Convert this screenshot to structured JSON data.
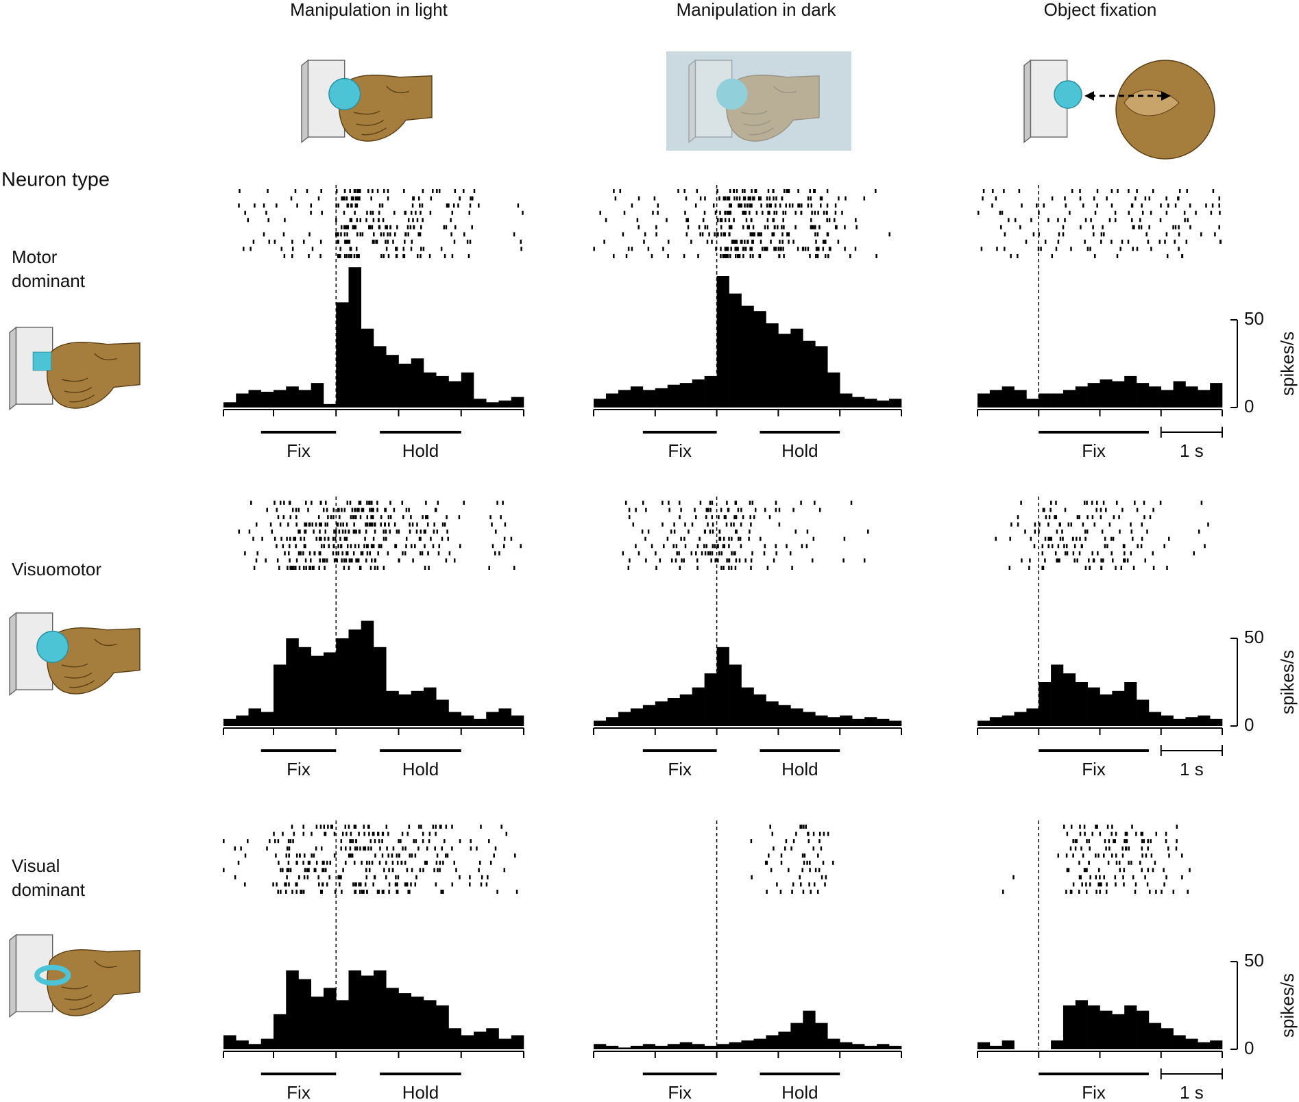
{
  "column_titles": [
    "Manipulation in light",
    "Manipulation in dark",
    "Object fixation"
  ],
  "row_header": "Neuron type",
  "row_labels": [
    [
      "Motor",
      "dominant"
    ],
    [
      "Visuomotor"
    ],
    [
      "Visual",
      "dominant"
    ]
  ],
  "chart_data": [
    {
      "type": "histogram",
      "color": "#000000",
      "xlim": [
        -1.8,
        3
      ],
      "ylim": [
        0,
        100
      ],
      "xticks": [
        -1.8,
        -1,
        0,
        1,
        2,
        3
      ],
      "bins": [
        -1.8,
        -1.6,
        -1.4,
        -1.2,
        -1,
        -0.8,
        -0.6,
        -0.4,
        -0.2,
        0,
        0.2,
        0.4,
        0.6,
        0.8,
        1,
        1.2,
        1.4,
        1.6,
        1.8,
        2,
        2.2,
        2.4,
        2.6,
        2.8,
        3
      ],
      "values": [
        3,
        8,
        10,
        9,
        10,
        12,
        10,
        14,
        2,
        60,
        80,
        45,
        35,
        30,
        25,
        28,
        20,
        18,
        15,
        20,
        5,
        3,
        4,
        6
      ],
      "events": [
        {
          "label": "Fix",
          "start": -1.2,
          "end": 0
        },
        {
          "label": "Hold",
          "start": 0.7,
          "end": 2
        }
      ]
    },
    {
      "type": "histogram",
      "color": "#000000",
      "xlim": [
        -2,
        3
      ],
      "ylim": [
        0,
        100
      ],
      "xticks": [
        -2,
        -1,
        0,
        1,
        2,
        3
      ],
      "bins": [
        -2,
        -1.8,
        -1.6,
        -1.4,
        -1.2,
        -1,
        -0.8,
        -0.6,
        -0.4,
        -0.2,
        0,
        0.2,
        0.4,
        0.6,
        0.8,
        1,
        1.2,
        1.4,
        1.6,
        1.8,
        2,
        2.2,
        2.4,
        2.6,
        2.8,
        3
      ],
      "values": [
        5,
        8,
        10,
        12,
        10,
        11,
        13,
        14,
        16,
        18,
        75,
        65,
        58,
        55,
        48,
        42,
        45,
        38,
        35,
        20,
        8,
        6,
        5,
        4,
        5
      ],
      "events": [
        {
          "label": "Fix",
          "start": -1.2,
          "end": 0
        },
        {
          "label": "Hold",
          "start": 0.7,
          "end": 2
        }
      ]
    },
    {
      "type": "histogram",
      "color": "#000000",
      "xlim": [
        -1,
        3
      ],
      "ylim": [
        0,
        100
      ],
      "xticks": [
        -1,
        0,
        1,
        2,
        3
      ],
      "yticks": [
        0,
        50
      ],
      "y_label": "spikes/s",
      "bins": [
        -1,
        -0.8,
        -0.6,
        -0.4,
        -0.2,
        0,
        0.2,
        0.4,
        0.6,
        0.8,
        1,
        1.2,
        1.4,
        1.6,
        1.8,
        2,
        2.2,
        2.4,
        2.6,
        2.8,
        3
      ],
      "values": [
        8,
        10,
        12,
        10,
        5,
        8,
        8,
        10,
        12,
        14,
        16,
        15,
        18,
        14,
        12,
        10,
        15,
        12,
        10,
        14
      ],
      "events": [
        {
          "label": "Fix",
          "start": 0,
          "end": 1.8
        }
      ],
      "scale_bar": {
        "label": "1 s",
        "start": 2,
        "end": 3
      }
    },
    {
      "type": "histogram",
      "color": "#000000",
      "xlim": [
        -1.8,
        3
      ],
      "ylim": [
        0,
        100
      ],
      "xticks": [
        -1.8,
        -1,
        0,
        1,
        2,
        3
      ],
      "bins": [
        -1.8,
        -1.6,
        -1.4,
        -1.2,
        -1,
        -0.8,
        -0.6,
        -0.4,
        -0.2,
        0,
        0.2,
        0.4,
        0.6,
        0.8,
        1,
        1.2,
        1.4,
        1.6,
        1.8,
        2,
        2.2,
        2.4,
        2.6,
        2.8,
        3
      ],
      "values": [
        4,
        6,
        10,
        8,
        35,
        50,
        45,
        40,
        42,
        50,
        55,
        60,
        45,
        20,
        18,
        20,
        22,
        15,
        8,
        6,
        4,
        8,
        10,
        6
      ],
      "events": [
        {
          "label": "Fix",
          "start": -1.2,
          "end": 0
        },
        {
          "label": "Hold",
          "start": 0.7,
          "end": 2
        }
      ]
    },
    {
      "type": "histogram",
      "color": "#000000",
      "xlim": [
        -2,
        3
      ],
      "ylim": [
        0,
        100
      ],
      "xticks": [
        -2,
        -1,
        0,
        1,
        2,
        3
      ],
      "bins": [
        -2,
        -1.8,
        -1.6,
        -1.4,
        -1.2,
        -1,
        -0.8,
        -0.6,
        -0.4,
        -0.2,
        0,
        0.2,
        0.4,
        0.6,
        0.8,
        1,
        1.2,
        1.4,
        1.6,
        1.8,
        2,
        2.2,
        2.4,
        2.6,
        2.8,
        3
      ],
      "values": [
        3,
        5,
        8,
        10,
        12,
        14,
        16,
        18,
        22,
        30,
        45,
        35,
        22,
        18,
        14,
        12,
        10,
        8,
        6,
        5,
        6,
        4,
        5,
        4,
        3
      ],
      "events": [
        {
          "label": "Fix",
          "start": -1.2,
          "end": 0
        },
        {
          "label": "Hold",
          "start": 0.7,
          "end": 2
        }
      ]
    },
    {
      "type": "histogram",
      "color": "#000000",
      "xlim": [
        -1,
        3
      ],
      "ylim": [
        0,
        100
      ],
      "xticks": [
        -1,
        0,
        1,
        2,
        3
      ],
      "yticks": [
        0,
        50
      ],
      "y_label": "spikes/s",
      "bins": [
        -1,
        -0.8,
        -0.6,
        -0.4,
        -0.2,
        0,
        0.2,
        0.4,
        0.6,
        0.8,
        1,
        1.2,
        1.4,
        1.6,
        1.8,
        2,
        2.2,
        2.4,
        2.6,
        2.8,
        3
      ],
      "values": [
        3,
        5,
        6,
        8,
        10,
        25,
        35,
        30,
        25,
        22,
        18,
        20,
        25,
        15,
        8,
        6,
        4,
        5,
        6,
        4
      ],
      "events": [
        {
          "label": "Fix",
          "start": 0,
          "end": 1.8
        }
      ],
      "scale_bar": {
        "label": "1 s",
        "start": 2,
        "end": 3
      }
    },
    {
      "type": "histogram",
      "color": "#000000",
      "xlim": [
        -1.8,
        3
      ],
      "ylim": [
        0,
        100
      ],
      "xticks": [
        -1.8,
        -1,
        0,
        1,
        2,
        3
      ],
      "bins": [
        -1.8,
        -1.6,
        -1.4,
        -1.2,
        -1,
        -0.8,
        -0.6,
        -0.4,
        -0.2,
        0,
        0.2,
        0.4,
        0.6,
        0.8,
        1,
        1.2,
        1.4,
        1.6,
        1.8,
        2,
        2.2,
        2.4,
        2.6,
        2.8,
        3
      ],
      "values": [
        8,
        5,
        3,
        6,
        20,
        45,
        40,
        30,
        35,
        28,
        45,
        42,
        45,
        35,
        32,
        30,
        28,
        25,
        12,
        8,
        10,
        12,
        6,
        8
      ],
      "events": [
        {
          "label": "Fix",
          "start": -1.2,
          "end": 0
        },
        {
          "label": "Hold",
          "start": 0.7,
          "end": 2
        }
      ]
    },
    {
      "type": "histogram",
      "color": "#000000",
      "xlim": [
        -2,
        3
      ],
      "ylim": [
        0,
        100
      ],
      "xticks": [
        -2,
        -1,
        0,
        1,
        2,
        3
      ],
      "bins": [
        -2,
        -1.8,
        -1.6,
        -1.4,
        -1.2,
        -1,
        -0.8,
        -0.6,
        -0.4,
        -0.2,
        0,
        0.2,
        0.4,
        0.6,
        0.8,
        1,
        1.2,
        1.4,
        1.6,
        1.8,
        2,
        2.2,
        2.4,
        2.6,
        2.8,
        3
      ],
      "values": [
        3,
        2,
        1,
        2,
        3,
        2,
        3,
        4,
        3,
        2,
        3,
        4,
        5,
        6,
        8,
        10,
        15,
        22,
        15,
        6,
        4,
        3,
        2,
        3,
        2
      ],
      "events": [
        {
          "label": "Fix",
          "start": -1.2,
          "end": 0
        },
        {
          "label": "Hold",
          "start": 0.7,
          "end": 2
        }
      ]
    },
    {
      "type": "histogram",
      "color": "#000000",
      "xlim": [
        -1,
        3
      ],
      "ylim": [
        0,
        100
      ],
      "xticks": [
        -1,
        0,
        1,
        2,
        3
      ],
      "yticks": [
        0,
        50
      ],
      "y_label": "spikes/s",
      "bins": [
        -1,
        -0.8,
        -0.6,
        -0.4,
        -0.2,
        0,
        0.2,
        0.4,
        0.6,
        0.8,
        1,
        1.2,
        1.4,
        1.6,
        1.8,
        2,
        2.2,
        2.4,
        2.6,
        2.8,
        3
      ],
      "values": [
        4,
        2,
        5,
        0,
        0,
        0,
        5,
        25,
        28,
        25,
        22,
        20,
        25,
        22,
        15,
        12,
        8,
        6,
        4,
        5
      ],
      "events": [
        {
          "label": "Fix",
          "start": 0,
          "end": 1.8
        }
      ],
      "scale_bar": {
        "label": "1 s",
        "start": 2,
        "end": 3
      }
    }
  ]
}
